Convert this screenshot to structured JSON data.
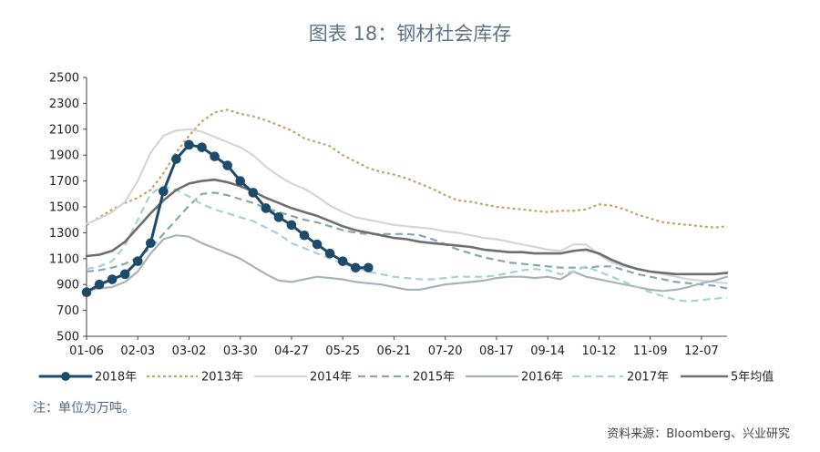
{
  "chart_data": {
    "type": "line",
    "title": "图表 18：钢材社会库存",
    "note": "注：单位为万吨。",
    "source": "资料来源：Bloomberg、兴业研究",
    "xlabel": "",
    "ylabel": "",
    "ylim": [
      500,
      2500
    ],
    "yticks": [
      "2500",
      "2300",
      "2100",
      "1900",
      "1700",
      "1500",
      "1300",
      "1100",
      "900",
      "700",
      "500"
    ],
    "xlim": [
      0,
      50
    ],
    "xtick_positions": [
      0,
      4,
      8,
      12,
      16,
      20,
      24,
      28,
      32,
      36,
      40,
      44,
      48
    ],
    "xticks": [
      "01-06",
      "02-03",
      "03-02",
      "03-30",
      "04-27",
      "05-25",
      "06-21",
      "07-20",
      "08-17",
      "09-14",
      "10-12",
      "11-09",
      "12-07"
    ],
    "grid": false,
    "legend_position": "bottom",
    "series": [
      {
        "name": "2013年",
        "color": "#c8a266",
        "style": "dotted",
        "x": [
          0,
          1,
          2,
          3,
          4,
          5,
          6,
          7,
          8,
          9,
          10,
          11,
          12,
          13,
          14,
          15,
          16,
          17,
          18,
          19,
          20,
          21,
          22,
          23,
          24,
          25,
          26,
          27,
          28,
          29,
          30,
          31,
          32,
          33,
          34,
          35,
          36,
          37,
          38,
          39,
          40,
          41,
          42,
          43,
          44,
          45,
          46,
          47,
          48,
          49,
          50
        ],
        "values": [
          1360,
          1420,
          1480,
          1530,
          1570,
          1630,
          1760,
          1920,
          2050,
          2160,
          2230,
          2250,
          2220,
          2200,
          2170,
          2130,
          2090,
          2030,
          2000,
          1970,
          1900,
          1850,
          1800,
          1770,
          1750,
          1720,
          1680,
          1640,
          1590,
          1550,
          1540,
          1520,
          1500,
          1490,
          1480,
          1470,
          1460,
          1470,
          1470,
          1480,
          1520,
          1510,
          1480,
          1440,
          1410,
          1380,
          1370,
          1360,
          1350,
          1340,
          1350
        ]
      },
      {
        "name": "2014年",
        "color": "#d6d6d6",
        "style": "solid",
        "x": [
          0,
          1,
          2,
          3,
          4,
          5,
          6,
          7,
          8,
          9,
          10,
          11,
          12,
          13,
          14,
          15,
          16,
          17,
          18,
          19,
          20,
          21,
          22,
          23,
          24,
          25,
          26,
          27,
          28,
          29,
          30,
          31,
          32,
          33,
          34,
          35,
          36,
          37,
          38,
          39,
          40,
          41,
          42,
          43,
          44,
          45,
          46,
          47,
          48,
          49,
          50
        ],
        "values": [
          1370,
          1410,
          1460,
          1540,
          1700,
          1920,
          2050,
          2090,
          2100,
          2080,
          2040,
          2000,
          1960,
          1900,
          1810,
          1740,
          1680,
          1640,
          1580,
          1510,
          1460,
          1420,
          1400,
          1380,
          1360,
          1350,
          1340,
          1330,
          1310,
          1300,
          1280,
          1260,
          1250,
          1230,
          1210,
          1190,
          1170,
          1160,
          1210,
          1210,
          1130,
          1070,
          1040,
          1020,
          1000,
          980,
          960,
          940,
          930,
          920,
          910
        ]
      },
      {
        "name": "2015年",
        "color": "#8aa6ad",
        "style": "dashed",
        "x": [
          0,
          1,
          2,
          3,
          4,
          5,
          6,
          7,
          8,
          9,
          10,
          11,
          12,
          13,
          14,
          15,
          16,
          17,
          18,
          19,
          20,
          21,
          22,
          23,
          24,
          25,
          26,
          27,
          28,
          29,
          30,
          31,
          32,
          33,
          34,
          35,
          36,
          37,
          38,
          39,
          40,
          41,
          42,
          43,
          44,
          45,
          46,
          47,
          48,
          49,
          50
        ],
        "values": [
          1000,
          1010,
          1030,
          1060,
          1110,
          1180,
          1290,
          1400,
          1510,
          1600,
          1610,
          1590,
          1560,
          1530,
          1490,
          1460,
          1430,
          1400,
          1380,
          1350,
          1320,
          1300,
          1290,
          1290,
          1290,
          1290,
          1280,
          1250,
          1210,
          1170,
          1140,
          1110,
          1090,
          1070,
          1060,
          1050,
          1040,
          1030,
          1030,
          1030,
          1040,
          1040,
          1010,
          980,
          960,
          940,
          920,
          910,
          900,
          890,
          870
        ]
      },
      {
        "name": "2016年",
        "color": "#a9b3b7",
        "style": "solid",
        "x": [
          0,
          1,
          2,
          3,
          4,
          5,
          6,
          7,
          8,
          9,
          10,
          11,
          12,
          13,
          14,
          15,
          16,
          17,
          18,
          19,
          20,
          21,
          22,
          23,
          24,
          25,
          26,
          27,
          28,
          29,
          30,
          31,
          32,
          33,
          34,
          35,
          36,
          37,
          38,
          39,
          40,
          41,
          42,
          43,
          44,
          45,
          46,
          47,
          48,
          49,
          50
        ],
        "values": [
          860,
          870,
          880,
          920,
          1000,
          1140,
          1250,
          1280,
          1270,
          1220,
          1180,
          1140,
          1100,
          1040,
          980,
          930,
          920,
          940,
          960,
          950,
          940,
          920,
          910,
          900,
          880,
          860,
          860,
          880,
          900,
          910,
          920,
          930,
          950,
          960,
          960,
          950,
          960,
          940,
          1000,
          960,
          940,
          920,
          900,
          880,
          860,
          850,
          860,
          880,
          910,
          930,
          960
        ]
      },
      {
        "name": "2017年",
        "color": "#a4d3d6",
        "style": "dashed",
        "x": [
          0,
          1,
          2,
          3,
          4,
          5,
          6,
          7,
          8,
          9,
          10,
          11,
          12,
          13,
          14,
          15,
          16,
          17,
          18,
          19,
          20,
          21,
          22,
          23,
          24,
          25,
          26,
          27,
          28,
          29,
          30,
          31,
          32,
          33,
          34,
          35,
          36,
          37,
          38,
          39,
          40,
          41,
          42,
          43,
          44,
          45,
          46,
          47,
          48,
          49,
          50
        ],
        "values": [
          1020,
          1040,
          1080,
          1200,
          1400,
          1600,
          1660,
          1630,
          1580,
          1520,
          1480,
          1450,
          1420,
          1390,
          1340,
          1290,
          1220,
          1180,
          1140,
          1100,
          1060,
          1030,
          1000,
          980,
          960,
          950,
          940,
          940,
          950,
          960,
          960,
          960,
          970,
          990,
          1010,
          1020,
          1010,
          980,
          1000,
          1040,
          1000,
          960,
          920,
          880,
          840,
          810,
          780,
          770,
          780,
          790,
          800
        ]
      },
      {
        "name": "5年均值",
        "color": "#6e6e6e",
        "style": "solid",
        "x": [
          0,
          1,
          2,
          3,
          4,
          5,
          6,
          7,
          8,
          9,
          10,
          11,
          12,
          13,
          14,
          15,
          16,
          17,
          18,
          19,
          20,
          21,
          22,
          23,
          24,
          25,
          26,
          27,
          28,
          29,
          30,
          31,
          32,
          33,
          34,
          35,
          36,
          37,
          38,
          39,
          40,
          41,
          42,
          43,
          44,
          45,
          46,
          47,
          48,
          49,
          50
        ],
        "values": [
          1120,
          1130,
          1160,
          1230,
          1340,
          1450,
          1550,
          1630,
          1680,
          1700,
          1710,
          1690,
          1660,
          1620,
          1570,
          1530,
          1490,
          1460,
          1430,
          1390,
          1350,
          1320,
          1300,
          1280,
          1260,
          1250,
          1230,
          1220,
          1210,
          1200,
          1190,
          1170,
          1160,
          1150,
          1150,
          1140,
          1140,
          1140,
          1160,
          1170,
          1140,
          1090,
          1050,
          1020,
          1000,
          990,
          980,
          980,
          980,
          980,
          990
        ]
      },
      {
        "name": "2018年",
        "color": "#1e4a6c",
        "style": "markers",
        "x": [
          0,
          1,
          2,
          3,
          4,
          5,
          6,
          7,
          8,
          9,
          10,
          11,
          12,
          13,
          14,
          15,
          16,
          17,
          18,
          19,
          20,
          21,
          22
        ],
        "values": [
          840,
          900,
          940,
          980,
          1080,
          1220,
          1620,
          1870,
          1980,
          1960,
          1890,
          1820,
          1700,
          1610,
          1490,
          1420,
          1360,
          1280,
          1210,
          1140,
          1080,
          1030,
          1030
        ]
      }
    ],
    "legend_order": [
      "2018年",
      "2013年",
      "2014年",
      "2015年",
      "2016年",
      "2017年",
      "5年均值"
    ]
  }
}
